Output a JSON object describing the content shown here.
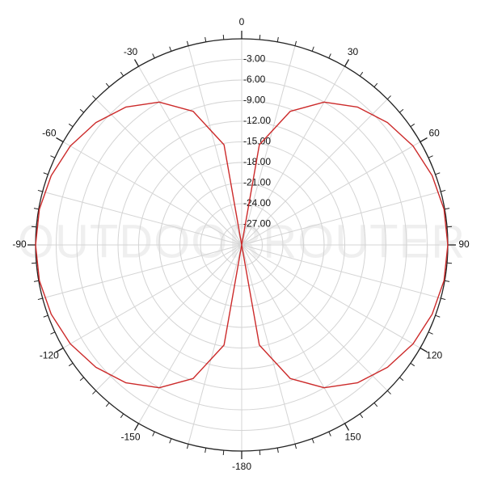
{
  "chart_data": {
    "type": "polar",
    "watermark": "OUTDOORROUTER",
    "theta": [
      0,
      10,
      20,
      30,
      40,
      50,
      60,
      70,
      80,
      90,
      100,
      110,
      120,
      130,
      140,
      150,
      160,
      170,
      180,
      190,
      200,
      210,
      220,
      230,
      240,
      250,
      260,
      270,
      280,
      290,
      300,
      310,
      320,
      330,
      340,
      350
    ],
    "values": [
      -30,
      -15.2,
      -9.3,
      -6,
      -3.8,
      -2.3,
      -1.2,
      -0.5,
      -0.1,
      0,
      -0.1,
      -0.5,
      -1.2,
      -2.3,
      -3.8,
      -6,
      -9.3,
      -15.2,
      -30,
      -15.2,
      -9.3,
      -6,
      -3.8,
      -2.3,
      -1.2,
      -0.5,
      -0.1,
      0,
      -0.1,
      -0.5,
      -1.2,
      -2.3,
      -3.8,
      -6,
      -9.3,
      -15.2
    ],
    "color": "#cc2a2a",
    "rlim": [
      -30,
      0
    ],
    "rticks": [
      {
        "value": -3,
        "label": "-3.00"
      },
      {
        "value": -6,
        "label": "-6.00"
      },
      {
        "value": -9,
        "label": "-9.00"
      },
      {
        "value": -12,
        "label": "-12.00"
      },
      {
        "value": -15,
        "label": "-15.00"
      },
      {
        "value": -18,
        "label": "-18.00"
      },
      {
        "value": -21,
        "label": "-21.00"
      },
      {
        "value": -24,
        "label": "-24.00"
      },
      {
        "value": -27,
        "label": "-27.00"
      }
    ],
    "thetaticks": [
      0,
      30,
      60,
      90,
      120,
      150,
      -180,
      -150,
      -120,
      -90,
      -60,
      -30
    ],
    "thetadirection": "clockwise",
    "grid": true
  }
}
